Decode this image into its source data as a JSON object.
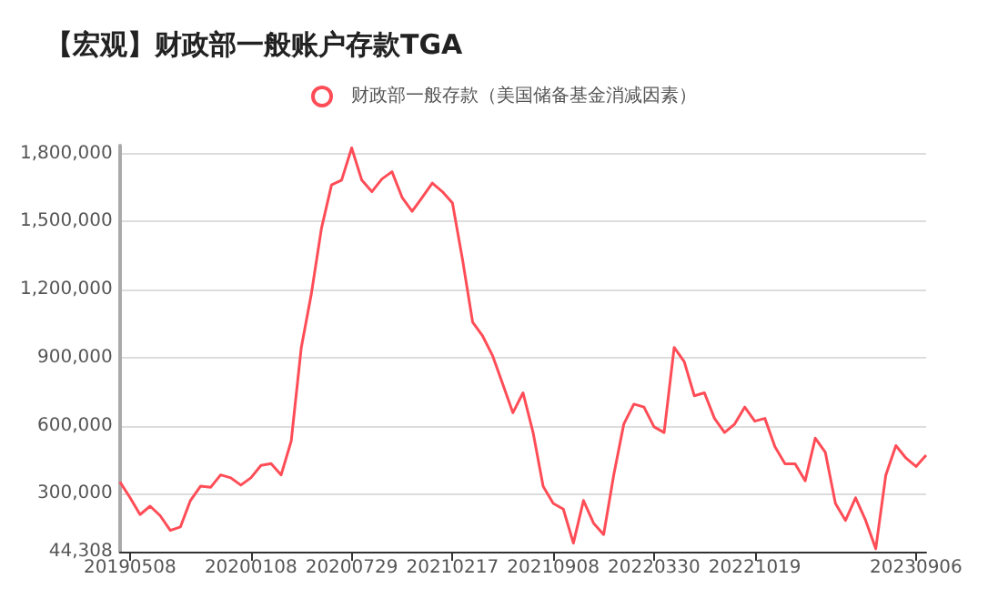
{
  "chart_data": {
    "type": "line",
    "title": "【宏观】财政部一般账户存款TGA",
    "categories": [
      null,
      "20190508",
      null,
      null,
      null,
      null,
      null,
      null,
      null,
      null,
      null,
      null,
      null,
      "20200108",
      null,
      null,
      null,
      null,
      null,
      null,
      null,
      null,
      null,
      "20200729",
      null,
      null,
      null,
      null,
      null,
      null,
      null,
      null,
      null,
      "20210217",
      null,
      null,
      null,
      null,
      null,
      null,
      null,
      null,
      null,
      "20210908",
      null,
      null,
      null,
      null,
      null,
      null,
      null,
      null,
      null,
      "20220330",
      null,
      null,
      null,
      null,
      null,
      null,
      null,
      null,
      null,
      "20221019",
      null,
      null,
      null,
      null,
      null,
      null,
      null,
      null,
      null,
      null,
      null,
      null,
      null,
      null,
      null,
      "20230906",
      null
    ],
    "series": [
      {
        "name": "财政部一般存款（美国储备基金消减因素）",
        "color": "#ff4d57",
        "values": [
          352000,
          283000,
          208000,
          245000,
          203000,
          138000,
          153000,
          270000,
          333000,
          328000,
          383000,
          370000,
          338000,
          370000,
          425000,
          433000,
          383000,
          532000,
          945000,
          1182000,
          1470000,
          1662000,
          1683000,
          1825000,
          1683000,
          1632000,
          1688000,
          1720000,
          1607000,
          1545000,
          1607000,
          1670000,
          1632000,
          1582000,
          1332000,
          1057000,
          995000,
          907000,
          782000,
          657000,
          745000,
          570000,
          332000,
          257000,
          232000,
          82000,
          270000,
          170000,
          120000,
          382000,
          607000,
          695000,
          682000,
          595000,
          570000,
          945000,
          882000,
          732000,
          745000,
          632000,
          570000,
          607000,
          682000,
          620000,
          632000,
          507000,
          432000,
          432000,
          357000,
          545000,
          482000,
          257000,
          182000,
          282000,
          182000,
          57000,
          382000,
          512000,
          457000,
          420000,
          470000
        ]
      }
    ],
    "ylim": [
      44308,
      1835000
    ],
    "yticks": [
      {
        "value": 44308,
        "label": "44,308"
      },
      {
        "value": 300000,
        "label": "300,000"
      },
      {
        "value": 600000,
        "label": "600,000"
      },
      {
        "value": 900000,
        "label": "900,000"
      },
      {
        "value": 1200000,
        "label": "1,200,000"
      },
      {
        "value": 1500000,
        "label": "1,500,000"
      },
      {
        "value": 1800000,
        "label": "1,800,000"
      }
    ],
    "grid": "y",
    "legend": "top"
  }
}
